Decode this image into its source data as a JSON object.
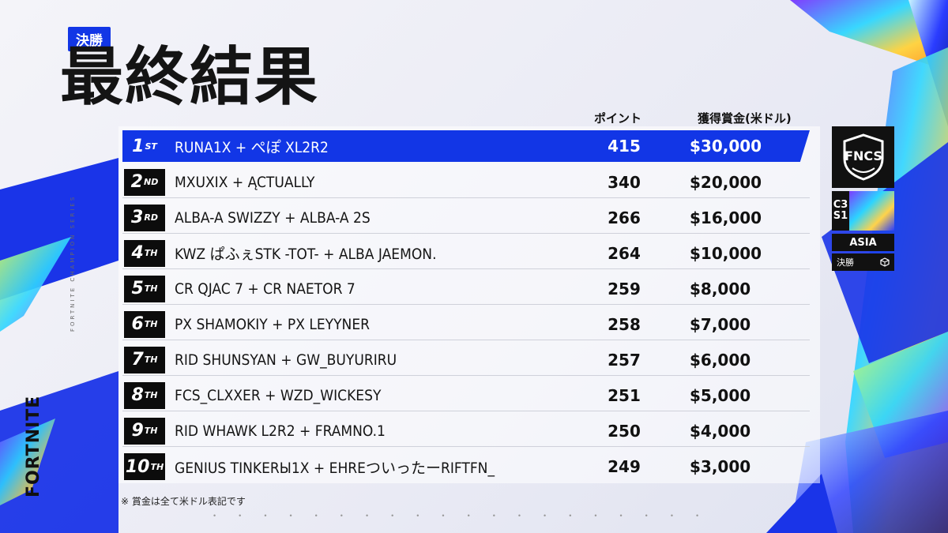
{
  "header": {
    "tag": "決勝",
    "title": "最終結果"
  },
  "side": {
    "brand": "FORTNITE",
    "series": "FORTNITE CHAMPION SERIES"
  },
  "columns": {
    "points": "ポイント",
    "prize": "獲得賞金(米ドル)"
  },
  "rows": [
    {
      "rank": "1",
      "suffix": "ST",
      "team": "RUNA1X + ぺぽ XL2R2",
      "points": "415",
      "prize": "$30,000"
    },
    {
      "rank": "2",
      "suffix": "ND",
      "team": "MXUXIX + ĄCTUALLY",
      "points": "340",
      "prize": "$20,000"
    },
    {
      "rank": "3",
      "suffix": "RD",
      "team": "ALBA-A SWIZZY + ALBA-A 2S",
      "points": "266",
      "prize": "$16,000"
    },
    {
      "rank": "4",
      "suffix": "TH",
      "team": "KWZ ぱふぇSTK -TOT- + ALBA JAEMON.",
      "points": "264",
      "prize": "$10,000"
    },
    {
      "rank": "5",
      "suffix": "TH",
      "team": "CR QJAC 7 + CR NAETOR 7",
      "points": "259",
      "prize": "$8,000"
    },
    {
      "rank": "6",
      "suffix": "TH",
      "team": "PX SHAMOKIY + PX LEYYNER",
      "points": "258",
      "prize": "$7,000"
    },
    {
      "rank": "7",
      "suffix": "TH",
      "team": "RID SHUNSYAN + GW_BUYURIRU",
      "points": "257",
      "prize": "$6,000"
    },
    {
      "rank": "8",
      "suffix": "TH",
      "team": "FCS_CLXXER + WZD_WICKESY",
      "points": "251",
      "prize": "$5,000"
    },
    {
      "rank": "9",
      "suffix": "TH",
      "team": "RID WHAWK L2R2 + FRAMNO.1",
      "points": "250",
      "prize": "$4,000"
    },
    {
      "rank": "10",
      "suffix": "TH",
      "team": "GENIUS TINKERЫ1X + EHREついったーRIFTFN_",
      "points": "249",
      "prize": "$3,000"
    }
  ],
  "note": "※ 賞金は全て米ドル表記です",
  "badge": {
    "logo_text": "FNCS",
    "season_line1": "C3",
    "season_line2": "S1",
    "region": "ASIA",
    "stage": "決勝"
  },
  "colors": {
    "accent": "#1236e6",
    "rank_bg": "#0c0c0c",
    "text": "#111111"
  }
}
